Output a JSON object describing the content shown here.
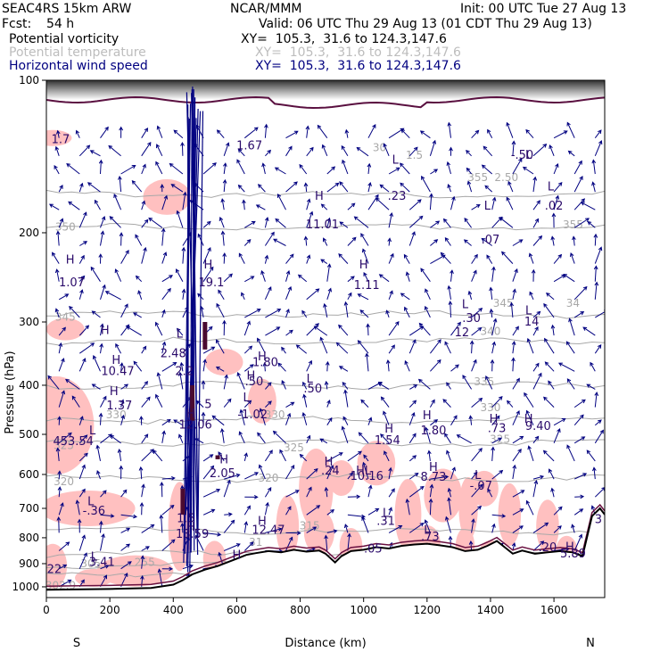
{
  "header": {
    "model": "SEAC4RS 15km ARW",
    "org": "NCAR/MMM",
    "init": "Init: 00 UTC Tue 27 Aug 13",
    "fcst_label": "Fcst:",
    "fcst_value": "54 h",
    "valid": "Valid: 06 UTC Thu 29 Aug 13 (01 CDT Thu 29 Aug 13)"
  },
  "fields": [
    {
      "name": "Potential vorticity",
      "xsec": "XY=  105.3,  31.6 to 124.3,147.6",
      "color": "#000000"
    },
    {
      "name": "Potential temperature",
      "xsec": "XY=  105.3,  31.6 to 124.3,147.6",
      "color": "#bdbdbd"
    },
    {
      "name": "Horizontal wind speed",
      "xsec": "XY=  105.3,  31.6 to 124.3,147.6",
      "color": "#000080"
    }
  ],
  "colors": {
    "pv_shade": "#ffc0c0",
    "theta": "#a8a8a8",
    "wind": "#000080",
    "pv_label": "#2a0a6a",
    "dark_pv": "#4a0a30"
  },
  "chart_data": {
    "type": "line",
    "title": "",
    "xlabel": "Distance (km)",
    "ylabel": "Pressure (hPa)",
    "xlim": [
      0,
      1760
    ],
    "ylim": [
      100,
      1050
    ],
    "y_scale": "log",
    "y_reversed": true,
    "x_ticks": [
      0,
      200,
      400,
      600,
      800,
      1000,
      1200,
      1400,
      1600
    ],
    "y_ticks": [
      100,
      200,
      300,
      400,
      500,
      600,
      700,
      800,
      900,
      1000
    ],
    "x_end_labels": {
      "left": "S",
      "right": "N"
    },
    "terrain_surface": {
      "x": [
        0,
        80,
        200,
        330,
        400,
        430,
        460,
        500,
        540,
        570,
        600,
        630,
        660,
        700,
        740,
        780,
        820,
        860,
        880,
        910,
        930,
        960,
        1000,
        1040,
        1080,
        1120,
        1160,
        1200,
        1240,
        1280,
        1320,
        1360,
        1390,
        1420,
        1450,
        1470,
        1500,
        1540,
        1580,
        1620,
        1660,
        1690,
        1720,
        1745,
        1760
      ],
      "y": [
        1013,
        1012,
        1010,
        1005,
        990,
        970,
        945,
        925,
        910,
        895,
        880,
        865,
        858,
        850,
        855,
        845,
        852,
        848,
        860,
        895,
        870,
        850,
        845,
        835,
        840,
        830,
        825,
        822,
        828,
        835,
        850,
        845,
        830,
        812,
        840,
        860,
        848,
        860,
        855,
        850,
        855,
        870,
        725,
        700,
        720
      ]
    },
    "theta_contours": [
      {
        "level": 300,
        "p": 940
      },
      {
        "level": 305,
        "p": 905
      },
      {
        "level": 310,
        "p": 860
      },
      {
        "level": 315,
        "p": 775
      },
      {
        "level": 320,
        "p": 610
      },
      {
        "level": 325,
        "p": 520
      },
      {
        "level": 330,
        "p": 468
      },
      {
        "level": 335,
        "p": 400
      },
      {
        "level": 340,
        "p": 328
      },
      {
        "level": 345,
        "p": 290
      },
      {
        "level": 350,
        "p": 195
      },
      {
        "level": 355,
        "p": 168
      }
    ],
    "theta_labels": [
      {
        "text": "302.9",
        "x": 45,
        "p": 1010
      },
      {
        "text": "305",
        "x": 140,
        "p": 915
      },
      {
        "text": "31",
        "x": 660,
        "p": 830
      },
      {
        "text": "315",
        "x": 830,
        "p": 770
      },
      {
        "text": "320",
        "x": 55,
        "p": 630
      },
      {
        "text": "320",
        "x": 700,
        "p": 620
      },
      {
        "text": "325",
        "x": 55,
        "p": 535
      },
      {
        "text": "325",
        "x": 780,
        "p": 540
      },
      {
        "text": "325",
        "x": 1430,
        "p": 520
      },
      {
        "text": "330",
        "x": 220,
        "p": 465
      },
      {
        "text": "330",
        "x": 720,
        "p": 465
      },
      {
        "text": "330",
        "x": 1400,
        "p": 450
      },
      {
        "text": "335",
        "x": 1380,
        "p": 400
      },
      {
        "text": "340",
        "x": 1400,
        "p": 318
      },
      {
        "text": "345",
        "x": 1440,
        "p": 280
      },
      {
        "text": "345",
        "x": 60,
        "p": 298
      },
      {
        "text": "34",
        "x": 1660,
        "p": 280
      },
      {
        "text": "350",
        "x": 60,
        "p": 198
      },
      {
        "text": "355",
        "x": 1360,
        "p": 158
      },
      {
        "text": "355",
        "x": 1660,
        "p": 196
      },
      {
        "text": "255",
        "x": 310,
        "p": 910
      },
      {
        "text": "30",
        "x": 1050,
        "p": 138
      },
      {
        "text": "1.5",
        "x": 1160,
        "p": 143
      },
      {
        "text": "2.50",
        "x": 1450,
        "p": 158
      }
    ],
    "pv_labels": [
      {
        "text": "1.7",
        "x": 45,
        "p": 133
      },
      {
        "text": "H",
        "x": 75,
        "p": 230
      },
      {
        "text": "1.07",
        "x": 80,
        "p": 255
      },
      {
        "text": "H",
        "x": 185,
        "p": 317
      },
      {
        "text": "2.48",
        "x": 400,
        "p": 352
      },
      {
        "text": "L",
        "x": 420,
        "p": 322
      },
      {
        "text": "2.2",
        "x": 435,
        "p": 382
      },
      {
        "text": "H",
        "x": 220,
        "p": 363
      },
      {
        "text": "10.47",
        "x": 225,
        "p": 382
      },
      {
        "text": "H",
        "x": 213,
        "p": 418
      },
      {
        "text": "1.37",
        "x": 230,
        "p": 446
      },
      {
        "text": "L",
        "x": 145,
        "p": 500
      },
      {
        "text": "453.54",
        "x": 85,
        "p": 525
      },
      {
        "text": "H",
        "x": 455,
        "p": 463
      },
      {
        "text": "12.06",
        "x": 470,
        "p": 487
      },
      {
        "text": "5",
        "x": 510,
        "p": 444
      },
      {
        "text": "H",
        "x": 510,
        "p": 235
      },
      {
        "text": "19.1",
        "x": 520,
        "p": 255
      },
      {
        "text": "1.67",
        "x": 640,
        "p": 137
      },
      {
        "text": "H",
        "x": 680,
        "p": 357
      },
      {
        "text": "1.80",
        "x": 690,
        "p": 367
      },
      {
        "text": "H",
        "x": 645,
        "p": 390
      },
      {
        "text": ".50",
        "x": 655,
        "p": 400
      },
      {
        "text": "L",
        "x": 630,
        "p": 430
      },
      {
        "text": "-1.02",
        "x": 650,
        "p": 465
      },
      {
        "text": "L",
        "x": 830,
        "p": 395
      },
      {
        "text": ".50",
        "x": 840,
        "p": 413
      },
      {
        "text": "H",
        "x": 560,
        "p": 571
      },
      {
        "text": "2.05",
        "x": 555,
        "p": 607
      },
      {
        "text": "H",
        "x": 860,
        "p": 172
      },
      {
        "text": "11.01",
        "x": 870,
        "p": 196
      },
      {
        "text": "H",
        "x": 1000,
        "p": 235
      },
      {
        "text": "1.11",
        "x": 1010,
        "p": 258
      },
      {
        "text": "L",
        "x": 1100,
        "p": 146
      },
      {
        "text": ".23",
        "x": 1105,
        "p": 172
      },
      {
        "text": "L",
        "x": 1390,
        "p": 180
      },
      {
        "text": ".07",
        "x": 1400,
        "p": 210
      },
      {
        "text": "L",
        "x": 1320,
        "p": 282
      },
      {
        "text": ".30",
        "x": 1340,
        "p": 300
      },
      {
        "text": "12",
        "x": 1310,
        "p": 320
      },
      {
        "text": "L",
        "x": 1520,
        "p": 290
      },
      {
        "text": "14",
        "x": 1530,
        "p": 305
      },
      {
        "text": "L",
        "x": 1590,
        "p": 165
      },
      {
        "text": ".02",
        "x": 1600,
        "p": 180
      },
      {
        "text": "L",
        "x": 1520,
        "p": 143
      },
      {
        "text": "-.50",
        "x": 1500,
        "p": 143
      },
      {
        "text": "H",
        "x": 1080,
        "p": 496
      },
      {
        "text": "1.54",
        "x": 1075,
        "p": 523
      },
      {
        "text": "H",
        "x": 1200,
        "p": 467
      },
      {
        "text": "1.80",
        "x": 1220,
        "p": 500
      },
      {
        "text": "H",
        "x": 1410,
        "p": 474
      },
      {
        "text": ".73",
        "x": 1420,
        "p": 495
      },
      {
        "text": "H",
        "x": 1520,
        "p": 474
      },
      {
        "text": "9.40",
        "x": 1550,
        "p": 490
      },
      {
        "text": "H",
        "x": 890,
        "p": 576
      },
      {
        "text": ".24",
        "x": 895,
        "p": 600
      },
      {
        "text": "HL",
        "x": 1000,
        "p": 600
      },
      {
        "text": "10.16",
        "x": 1010,
        "p": 615
      },
      {
        "text": "H",
        "x": 1220,
        "p": 591
      },
      {
        "text": "8.73",
        "x": 1220,
        "p": 617
      },
      {
        "text": "L",
        "x": 1360,
        "p": 612
      },
      {
        "text": "-.07",
        "x": 1370,
        "p": 643
      },
      {
        "text": "L",
        "x": 140,
        "p": 690
      },
      {
        "text": "-.36",
        "x": 150,
        "p": 720
      },
      {
        "text": "1.5",
        "x": 440,
        "p": 745
      },
      {
        "text": "H",
        "x": 455,
        "p": 775
      },
      {
        "text": "13.59",
        "x": 460,
        "p": 800
      },
      {
        "text": "H",
        "x": 680,
        "p": 755
      },
      {
        "text": "12.47",
        "x": 700,
        "p": 785
      },
      {
        "text": "L",
        "x": 1070,
        "p": 728
      },
      {
        "text": ".31",
        "x": 1070,
        "p": 755
      },
      {
        "text": "L",
        "x": 1200,
        "p": 785
      },
      {
        "text": ".73",
        "x": 1210,
        "p": 810
      },
      {
        "text": ".05",
        "x": 1030,
        "p": 855
      },
      {
        "text": ".20",
        "x": 1580,
        "p": 850
      },
      {
        "text": "H",
        "x": 1650,
        "p": 848
      },
      {
        "text": "5.89",
        "x": 1660,
        "p": 875
      },
      {
        "text": "3",
        "x": 1740,
        "p": 748
      },
      {
        "text": "H",
        "x": 600,
        "p": 880
      },
      {
        "text": "L",
        "x": 150,
        "p": 887
      },
      {
        "text": "3.41",
        "x": 175,
        "p": 910
      },
      {
        "text": "22",
        "x": 25,
        "p": 940
      }
    ]
  }
}
